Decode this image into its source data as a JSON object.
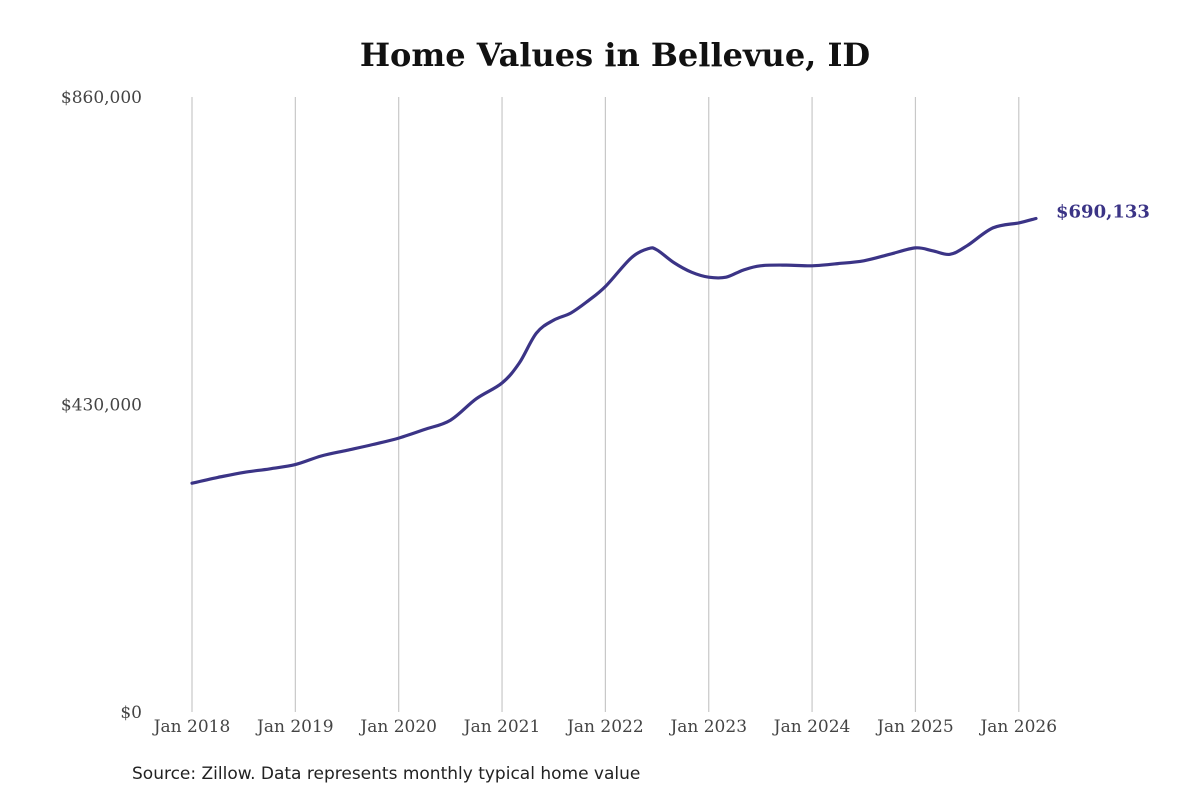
{
  "chart_data": {
    "type": "line",
    "title": "Home Values in Bellevue, ID",
    "source_note": "Source: Zillow. Data represents monthly typical home value",
    "ylim": [
      0,
      860000
    ],
    "y_ticks": [
      {
        "value": 0,
        "label": "$0"
      },
      {
        "value": 430000,
        "label": "$430,000"
      },
      {
        "value": 860000,
        "label": "$860,000"
      }
    ],
    "x_ticks": [
      {
        "value": "2018-01",
        "label": "Jan 2018"
      },
      {
        "value": "2019-01",
        "label": "Jan 2019"
      },
      {
        "value": "2020-01",
        "label": "Jan 2020"
      },
      {
        "value": "2021-01",
        "label": "Jan 2021"
      },
      {
        "value": "2022-01",
        "label": "Jan 2022"
      },
      {
        "value": "2023-01",
        "label": "Jan 2023"
      },
      {
        "value": "2024-01",
        "label": "Jan 2024"
      },
      {
        "value": "2025-01",
        "label": "Jan 2025"
      },
      {
        "value": "2026-01",
        "label": "Jan 2026"
      }
    ],
    "xlim": [
      "2018-01",
      "2026-03"
    ],
    "grid": "vertical",
    "line_color": "#3b3486",
    "series": [
      {
        "end_label": "$690,133",
        "x": [
          "2018-01",
          "2018-04",
          "2018-07",
          "2018-10",
          "2019-01",
          "2019-04",
          "2019-07",
          "2019-10",
          "2020-01",
          "2020-04",
          "2020-07",
          "2020-10",
          "2021-01",
          "2021-03",
          "2021-05",
          "2021-07",
          "2021-09",
          "2021-11",
          "2022-01",
          "2022-04",
          "2022-06",
          "2022-07",
          "2022-09",
          "2022-11",
          "2023-01",
          "2023-03",
          "2023-05",
          "2023-07",
          "2023-10",
          "2024-01",
          "2024-04",
          "2024-07",
          "2024-10",
          "2025-01",
          "2025-03",
          "2025-05",
          "2025-07",
          "2025-10",
          "2026-01",
          "2026-03"
        ],
        "values": [
          320000,
          328000,
          335000,
          340000,
          346000,
          358000,
          366000,
          374000,
          383000,
          395000,
          408000,
          438000,
          460000,
          488000,
          530000,
          548000,
          558000,
          575000,
          595000,
          635000,
          648000,
          646000,
          628000,
          615000,
          608000,
          608000,
          618000,
          624000,
          625000,
          624000,
          627000,
          631000,
          640000,
          649000,
          645000,
          640000,
          652000,
          677000,
          684000,
          690133
        ]
      }
    ]
  }
}
